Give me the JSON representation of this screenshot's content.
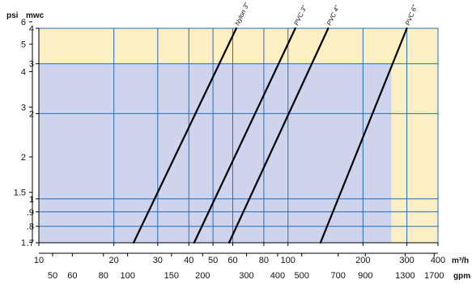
{
  "chart_data": {
    "type": "line",
    "title": "",
    "x_scale": "log",
    "y_scale": "log",
    "grid": true,
    "colors": {
      "shaded_region": "#cfd3ec",
      "highlight_region": "#fcefc4",
      "grid_lines": "#1f6fc4",
      "series_lines": "#000000",
      "axes": "#000000"
    },
    "regions": [
      {
        "name": "shaded",
        "x_range_m3h": [
          10,
          260
        ],
        "y_range_mwc": [
          0.7,
          3
        ]
      },
      {
        "name": "highlight",
        "x_range_m3h": [
          10,
          400
        ],
        "y_range_mwc": [
          0.7,
          4
        ]
      }
    ],
    "units": {
      "left_outer": "psi",
      "left_inner": "mwc",
      "bottom_upper": "m³/h",
      "bottom_lower": "gpm"
    },
    "axes": {
      "mwc": {
        "ticks": [
          "4",
          "3",
          "2",
          "1",
          ".9",
          ".8",
          ".7"
        ],
        "range": [
          0.7,
          4
        ]
      },
      "psi": {
        "ticks": [
          "6",
          "5",
          "4",
          "3",
          "2",
          "1.5",
          "1"
        ]
      },
      "m3h": {
        "ticks": [
          "10",
          "20",
          "30",
          "40",
          "50",
          "60",
          "80",
          "100",
          "200",
          "300",
          "400"
        ],
        "range": [
          10,
          400
        ]
      },
      "gpm": {
        "ticks": [
          "50",
          "60",
          "80",
          "100",
          "150",
          "200",
          "300",
          "400",
          "500",
          "700",
          "900",
          "1300",
          "1700"
        ]
      }
    },
    "series": [
      {
        "name": "Nylon 3\"",
        "x": [
          24,
          62
        ],
        "y": [
          0.7,
          4
        ]
      },
      {
        "name": "PVC 3\"",
        "x": [
          42,
          107
        ],
        "y": [
          0.7,
          4
        ]
      },
      {
        "name": "PVC 4\"",
        "x": [
          58,
          145
        ],
        "y": [
          0.7,
          4
        ]
      },
      {
        "name": "PVC 6\"",
        "x": [
          135,
          300
        ],
        "y": [
          0.7,
          4
        ]
      }
    ]
  }
}
